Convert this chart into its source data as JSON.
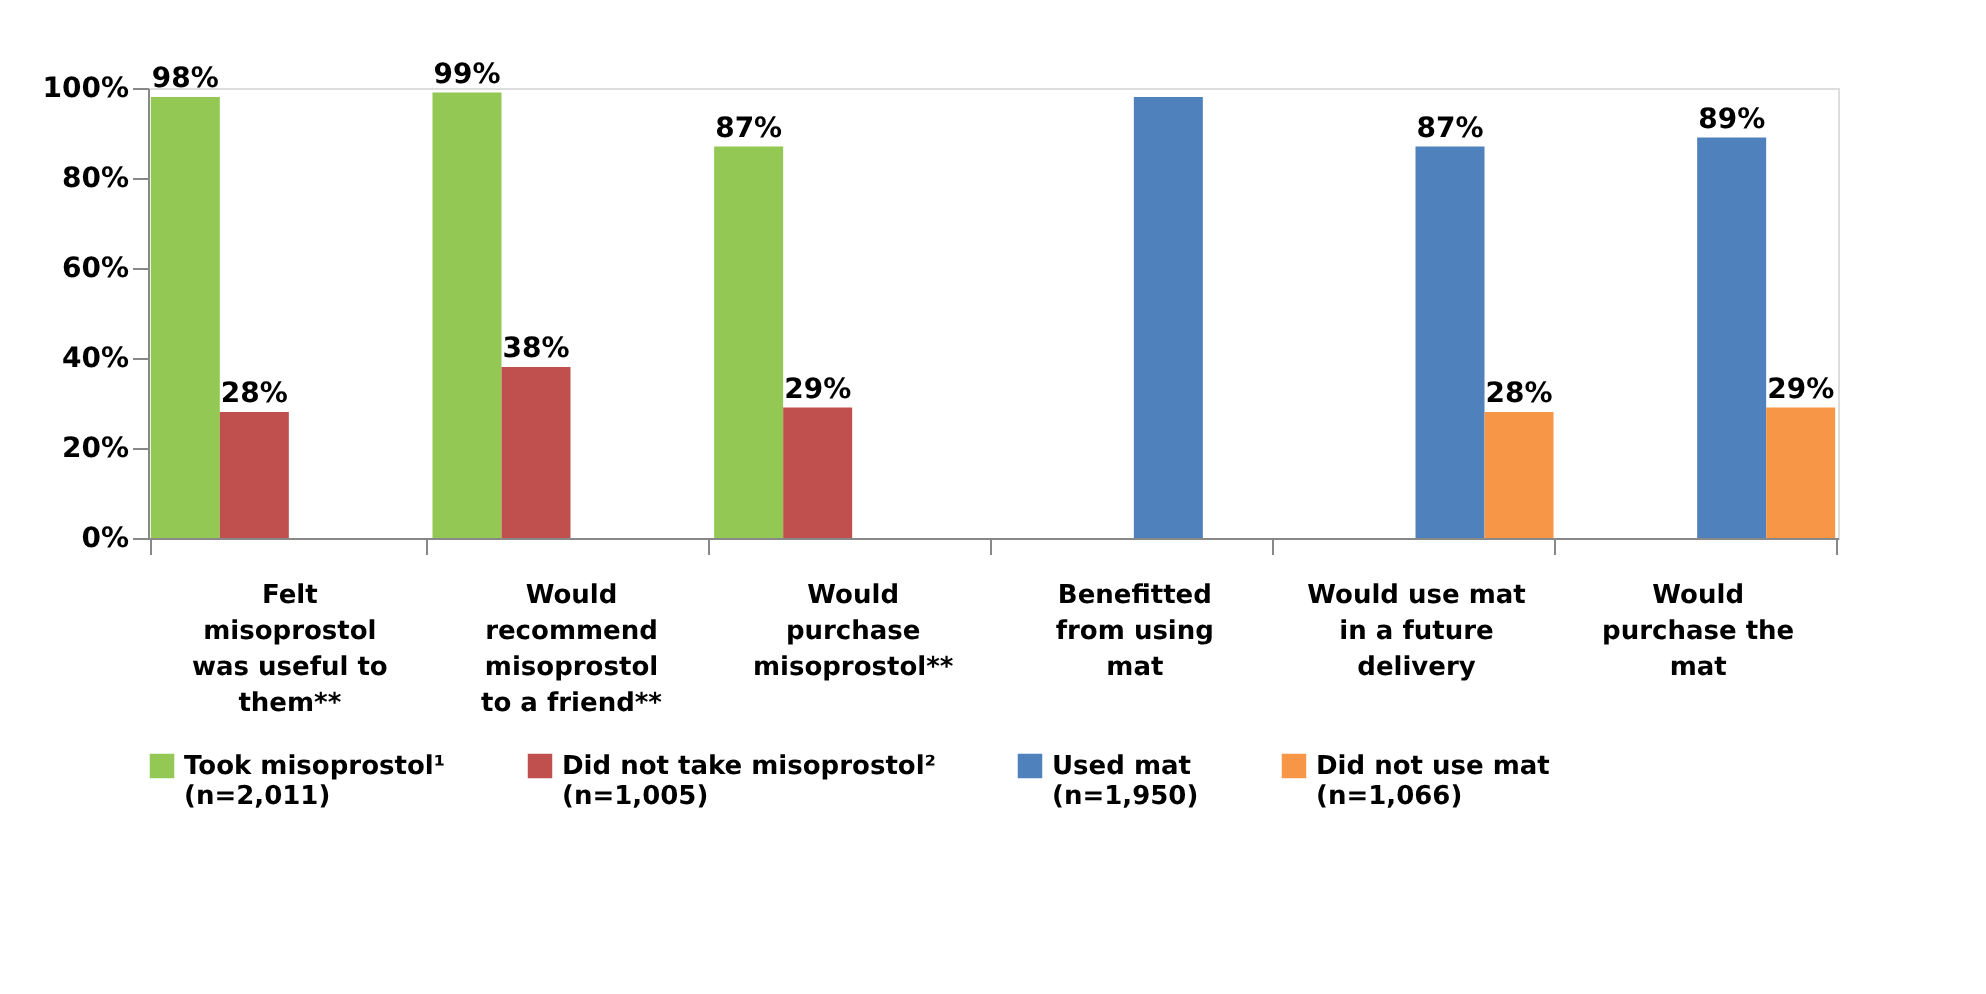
{
  "chart_data": {
    "type": "bar",
    "categories": [
      "Felt\nmisoprostol\nwas useful to\nthem**",
      "Would\nrecommend\nmisoprostol\nto a friend**",
      "Would\npurchase\nmisoprostol**",
      "Benefitted\nfrom using\nmat",
      "Would use mat\nin a future\ndelivery",
      "Would\npurchase the\nmat"
    ],
    "series": [
      {
        "name": "Took misoprostol¹\n(n=2,011)",
        "color": "#92c853",
        "values": [
          98,
          99,
          87,
          null,
          null,
          null
        ],
        "value_labels": [
          "98%",
          "99%",
          "87%",
          null,
          null,
          null
        ]
      },
      {
        "name": "Did not take misoprostol²\n(n=1,005)",
        "color": "#c0504d",
        "values": [
          28,
          38,
          29,
          null,
          null,
          null
        ],
        "value_labels": [
          "28%",
          "38%",
          "29%",
          null,
          null,
          null
        ]
      },
      {
        "name": "Used mat\n(n=1,950)",
        "color": "#4f81bd",
        "values": [
          null,
          null,
          null,
          98,
          87,
          89
        ],
        "value_labels": [
          null,
          null,
          null,
          null,
          "87%",
          "89%"
        ]
      },
      {
        "name": "Did not use mat\n(n=1,066)",
        "color": "#f79646",
        "values": [
          null,
          null,
          null,
          null,
          28,
          29
        ],
        "value_labels": [
          null,
          null,
          null,
          null,
          "28%",
          "29%"
        ]
      }
    ],
    "ylim": [
      0,
      100
    ],
    "yticks": [
      {
        "value": 0,
        "label": "0%"
      },
      {
        "value": 20,
        "label": "20%"
      },
      {
        "value": 40,
        "label": "40%"
      },
      {
        "value": 60,
        "label": "60%"
      },
      {
        "value": 80,
        "label": "80%"
      },
      {
        "value": 100,
        "label": "100%"
      }
    ],
    "grid": false,
    "legend": "bottom"
  }
}
